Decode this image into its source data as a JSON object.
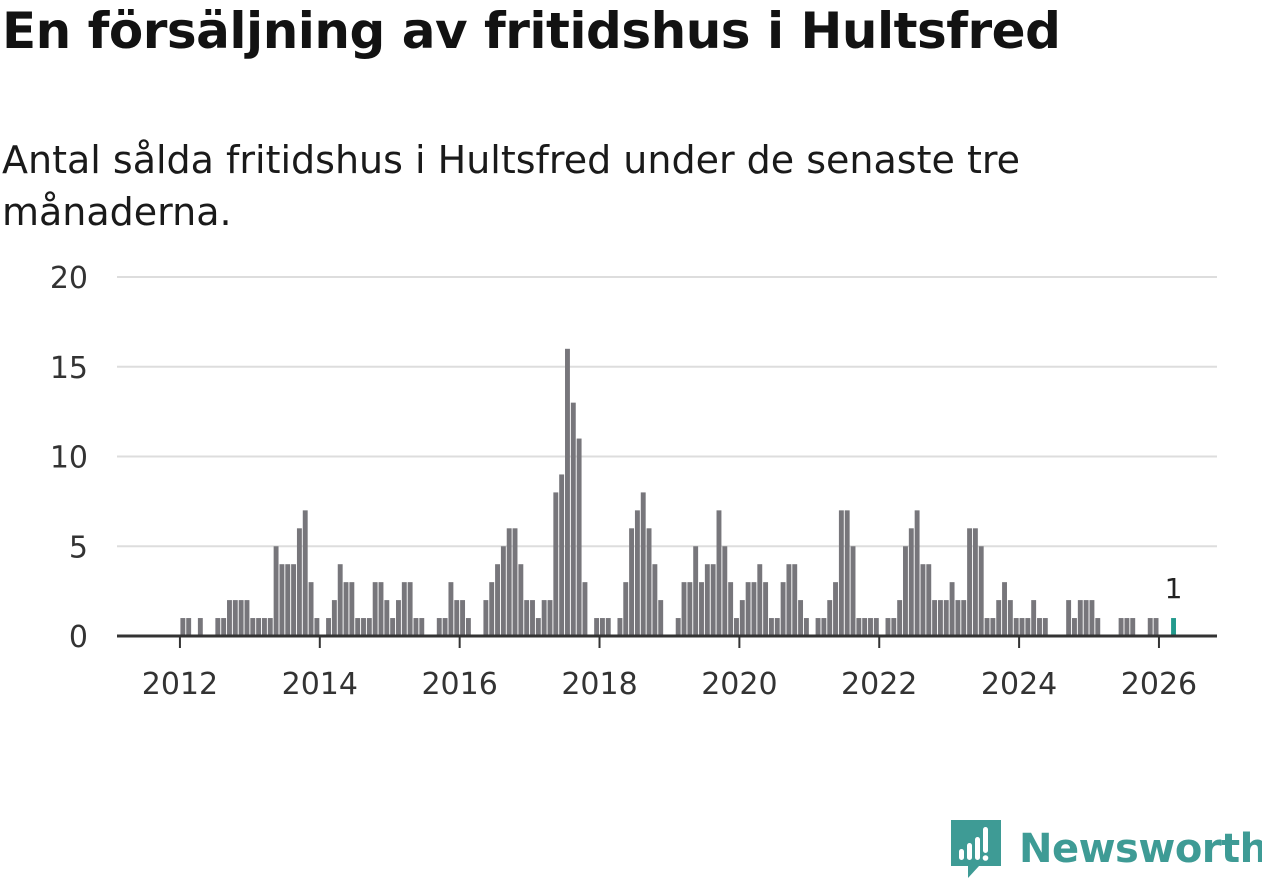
{
  "header": {
    "title": "En försäljning av fritidshus i Hultsfred",
    "subtitle": "Antal sålda fritidshus i Hultsfred under de senaste tre månaderna."
  },
  "brand": {
    "name": "Newsworthy",
    "color": "#3e9b95",
    "icon": "bar-chart-speech-bubble-icon"
  },
  "colors": {
    "bar": "#77767b",
    "highlight": "#239a8d",
    "grid": "#dddddd",
    "axis": "#333333"
  },
  "chart_data": {
    "type": "bar",
    "title": "En försäljning av fritidshus i Hultsfred",
    "subtitle": "Antal sålda fritidshus i Hultsfred under de senaste tre månaderna.",
    "xlabel": "",
    "ylabel": "",
    "ylim": [
      0,
      20
    ],
    "yticks": [
      0,
      5,
      10,
      15,
      20
    ],
    "xlim": [
      2011.1,
      2026.83
    ],
    "xticks": [
      2012,
      2014,
      2016,
      2018,
      2020,
      2022,
      2024,
      2026
    ],
    "grid": true,
    "start": "2011-01",
    "interval": "month",
    "values": [
      0,
      0,
      0,
      0,
      0,
      0,
      0,
      0,
      0,
      0,
      0,
      0,
      1,
      1,
      0,
      1,
      0,
      0,
      1,
      1,
      2,
      2,
      2,
      2,
      1,
      1,
      1,
      1,
      5,
      4,
      4,
      4,
      6,
      7,
      3,
      1,
      0,
      1,
      2,
      4,
      3,
      3,
      1,
      1,
      1,
      3,
      3,
      2,
      1,
      2,
      3,
      3,
      1,
      1,
      0,
      0,
      1,
      1,
      3,
      2,
      2,
      1,
      0,
      0,
      2,
      3,
      4,
      5,
      6,
      6,
      4,
      2,
      2,
      1,
      2,
      2,
      8,
      9,
      16,
      13,
      11,
      3,
      0,
      1,
      1,
      1,
      0,
      1,
      3,
      6,
      7,
      8,
      6,
      4,
      2,
      0,
      0,
      1,
      3,
      3,
      5,
      3,
      4,
      4,
      7,
      5,
      3,
      1,
      2,
      3,
      3,
      4,
      3,
      1,
      1,
      3,
      4,
      4,
      2,
      1,
      0,
      1,
      1,
      2,
      3,
      7,
      7,
      5,
      1,
      1,
      1,
      1,
      0,
      1,
      1,
      2,
      5,
      6,
      7,
      4,
      4,
      2,
      2,
      2,
      3,
      2,
      2,
      6,
      6,
      5,
      1,
      1,
      2,
      3,
      2,
      1,
      1,
      1,
      2,
      1,
      1,
      0,
      0,
      0,
      2,
      1,
      2,
      2,
      2,
      1,
      0,
      0,
      0,
      1,
      1,
      1,
      0,
      0,
      1,
      1,
      0,
      0,
      1
    ],
    "highlight_index": 182,
    "highlight_label": "1"
  }
}
